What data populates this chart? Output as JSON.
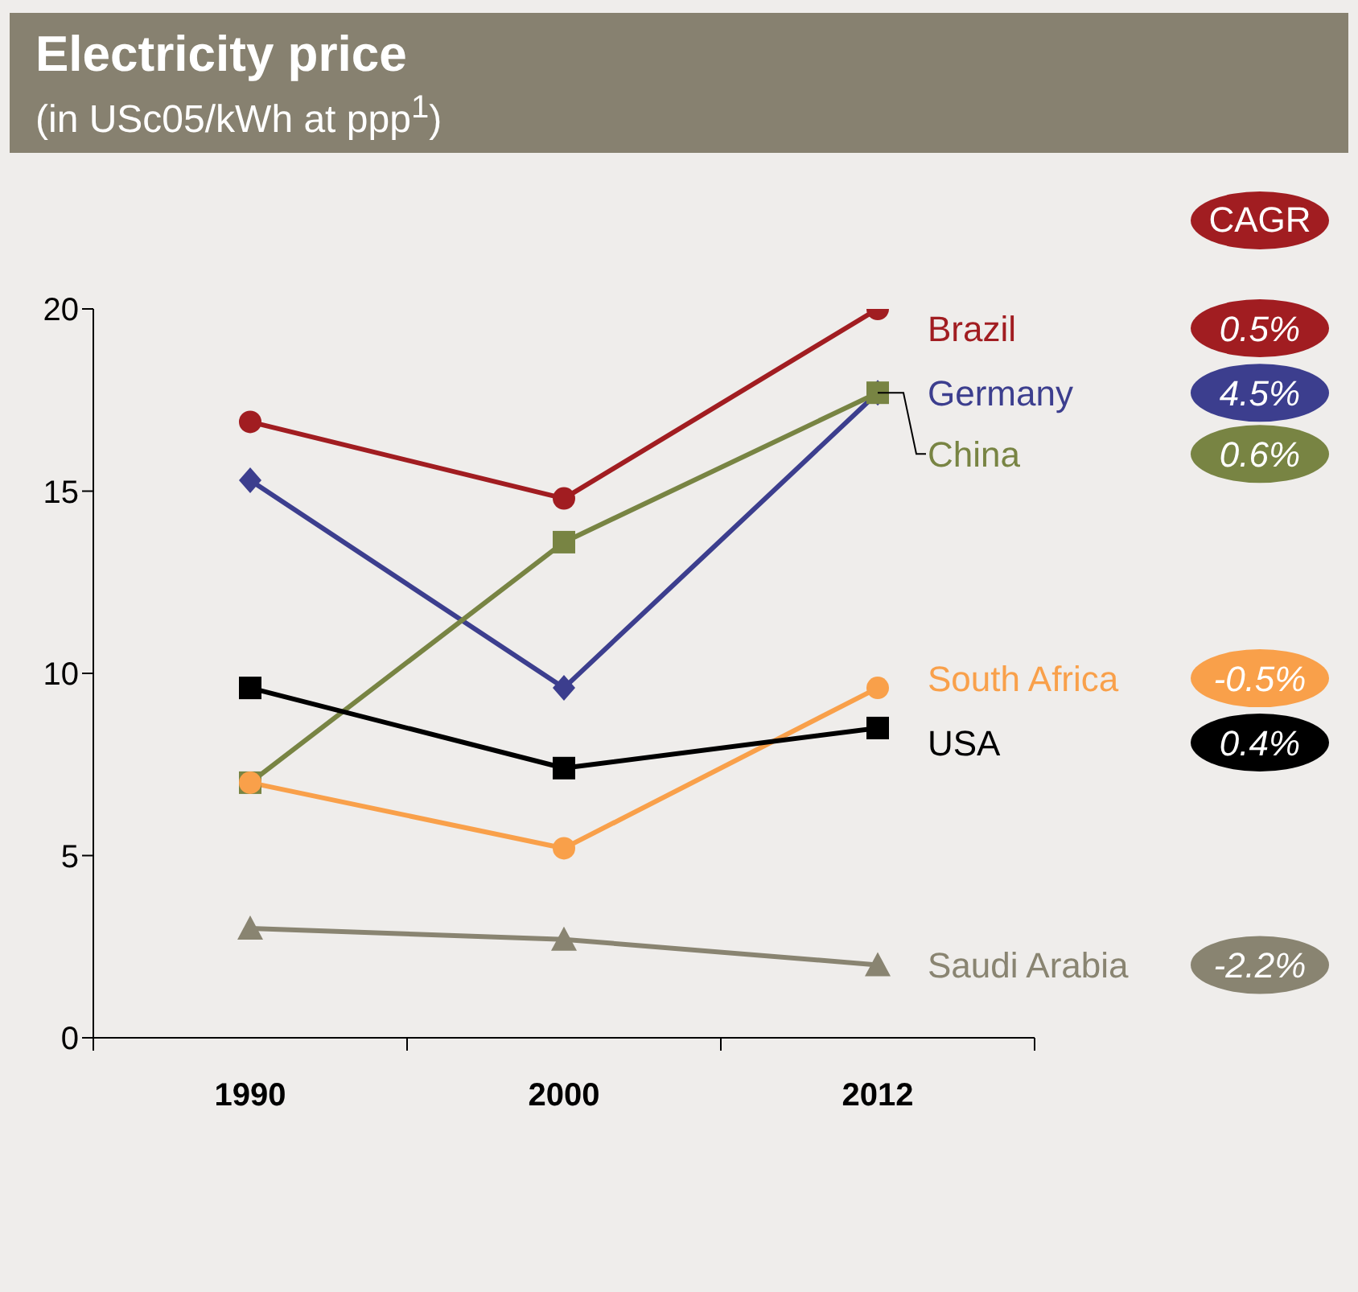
{
  "chart_data": {
    "type": "line",
    "title": "Electricity price",
    "subtitle": "(in USc05/kWh at ppp$^{1}$)",
    "categories": [
      "1990",
      "2000",
      "2012"
    ],
    "series": [
      {
        "name": "Brazil",
        "color": "#a11d21",
        "marker": "circle",
        "values": [
          16.9,
          14.8,
          20.0
        ]
      },
      {
        "name": "Germany",
        "color": "#3c3e8e",
        "marker": "diamond",
        "values": [
          15.3,
          9.6,
          17.7
        ]
      },
      {
        "name": "China",
        "color": "#788443",
        "marker": "square",
        "values": [
          7.0,
          13.6,
          17.7
        ]
      },
      {
        "name": "South Africa",
        "color": "#f9a04a",
        "marker": "circle",
        "values": [
          7.0,
          5.2,
          9.6
        ]
      },
      {
        "name": "USA",
        "color": "#000000",
        "marker": "square",
        "values": [
          9.6,
          7.4,
          8.5
        ]
      },
      {
        "name": "Saudi Arabia",
        "color": "#898471",
        "marker": "triangle",
        "values": [
          3.0,
          2.7,
          2.0
        ]
      }
    ],
    "ylim": [
      0,
      20
    ],
    "yticks": [
      0,
      5,
      10,
      15,
      20
    ],
    "grid": false,
    "legend": "right",
    "annotations": [
      "CAGR",
      "0.5%",
      "4.5%",
      "0.6%",
      "-0.5%",
      "0.4%",
      "-2.2%"
    ]
  }
}
